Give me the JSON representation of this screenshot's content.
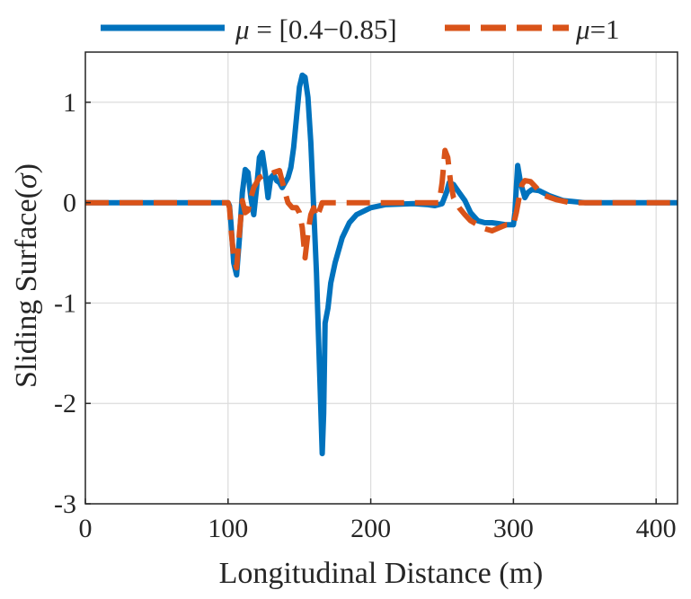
{
  "chart_data": {
    "type": "line",
    "xlabel": "Longitudinal Distance (m)",
    "ylabel_prefix": "Sliding Surface(",
    "ylabel_symbol": "σ",
    "ylabel_suffix": ")",
    "xlim": [
      0,
      415
    ],
    "ylim": [
      -3,
      1.5
    ],
    "xticks": [
      0,
      100,
      200,
      300,
      400
    ],
    "yticks": [
      -3,
      -2,
      -1,
      0,
      1
    ],
    "xtick_labels": [
      "0",
      "100",
      "200",
      "300",
      "400"
    ],
    "ytick_labels": [
      "-3",
      "-2",
      "-1",
      "0",
      "1"
    ],
    "grid": true,
    "legend_position": "top, outside",
    "series": [
      {
        "name": "μ = [0.4−0.85]",
        "legend_symbol": "μ",
        "legend_rest": " = [0.4−0.85]",
        "color": "#0072BD",
        "style": "solid",
        "points": [
          [
            0,
            0
          ],
          [
            100,
            0
          ],
          [
            101,
            -0.03
          ],
          [
            102,
            -0.2
          ],
          [
            104,
            -0.6
          ],
          [
            106,
            -0.72
          ],
          [
            108,
            -0.35
          ],
          [
            110,
            0.1
          ],
          [
            112,
            0.33
          ],
          [
            114,
            0.3
          ],
          [
            116,
            0.05
          ],
          [
            118,
            -0.12
          ],
          [
            120,
            0.15
          ],
          [
            122,
            0.45
          ],
          [
            124,
            0.5
          ],
          [
            126,
            0.3
          ],
          [
            128,
            0.05
          ],
          [
            130,
            0.25
          ],
          [
            132,
            0.28
          ],
          [
            134,
            0.22
          ],
          [
            136,
            0.2
          ],
          [
            138,
            0.15
          ],
          [
            140,
            0.2
          ],
          [
            142,
            0.25
          ],
          [
            144,
            0.35
          ],
          [
            146,
            0.55
          ],
          [
            148,
            0.85
          ],
          [
            150,
            1.15
          ],
          [
            152,
            1.27
          ],
          [
            154,
            1.25
          ],
          [
            156,
            1.05
          ],
          [
            158,
            0.6
          ],
          [
            160,
            -0.05
          ],
          [
            162,
            -0.7
          ],
          [
            164,
            -1.6
          ],
          [
            166,
            -2.5
          ],
          [
            167,
            -2.1
          ],
          [
            168,
            -1.2
          ],
          [
            170,
            -1.05
          ],
          [
            172,
            -0.8
          ],
          [
            175,
            -0.6
          ],
          [
            180,
            -0.35
          ],
          [
            185,
            -0.2
          ],
          [
            190,
            -0.12
          ],
          [
            200,
            -0.05
          ],
          [
            210,
            -0.02
          ],
          [
            230,
            -0.01
          ],
          [
            240,
            -0.02
          ],
          [
            245,
            -0.03
          ],
          [
            250,
            -0.01
          ],
          [
            253,
            0.1
          ],
          [
            255,
            0.2
          ],
          [
            258,
            0.18
          ],
          [
            262,
            0.1
          ],
          [
            266,
            0.02
          ],
          [
            270,
            -0.1
          ],
          [
            275,
            -0.18
          ],
          [
            280,
            -0.2
          ],
          [
            285,
            -0.2
          ],
          [
            290,
            -0.21
          ],
          [
            295,
            -0.22
          ],
          [
            300,
            -0.22
          ],
          [
            301,
            -0.1
          ],
          [
            302,
            0.15
          ],
          [
            303,
            0.37
          ],
          [
            305,
            0.2
          ],
          [
            308,
            0.05
          ],
          [
            310,
            0.1
          ],
          [
            313,
            0.13
          ],
          [
            318,
            0.12
          ],
          [
            325,
            0.07
          ],
          [
            335,
            0.02
          ],
          [
            350,
            0
          ],
          [
            380,
            0
          ],
          [
            415,
            0
          ]
        ]
      },
      {
        "name": "μ=1",
        "legend_symbol": "μ",
        "legend_rest": "=1",
        "color": "#D95319",
        "style": "dashed",
        "points": [
          [
            0,
            0
          ],
          [
            100,
            0
          ],
          [
            101,
            -0.05
          ],
          [
            102,
            -0.25
          ],
          [
            104,
            -0.55
          ],
          [
            106,
            -0.65
          ],
          [
            108,
            -0.3
          ],
          [
            110,
            0.02
          ],
          [
            112,
            -0.1
          ],
          [
            114,
            -0.08
          ],
          [
            116,
            0.05
          ],
          [
            118,
            0.15
          ],
          [
            120,
            0.2
          ],
          [
            122,
            0.25
          ],
          [
            125,
            0.27
          ],
          [
            128,
            0.27
          ],
          [
            132,
            0.3
          ],
          [
            136,
            0.32
          ],
          [
            140,
            0.1
          ],
          [
            142,
            0
          ],
          [
            145,
            -0.05
          ],
          [
            148,
            -0.05
          ],
          [
            150,
            -0.1
          ],
          [
            152,
            -0.25
          ],
          [
            154,
            -0.55
          ],
          [
            156,
            -0.3
          ],
          [
            158,
            -0.12
          ],
          [
            160,
            -0.05
          ],
          [
            162,
            -0.15
          ],
          [
            164,
            -0.08
          ],
          [
            166,
            0
          ],
          [
            180,
            0
          ],
          [
            200,
            0
          ],
          [
            230,
            0
          ],
          [
            248,
            0
          ],
          [
            250,
            0.2
          ],
          [
            252,
            0.52
          ],
          [
            254,
            0.45
          ],
          [
            256,
            0.2
          ],
          [
            258,
            0.05
          ],
          [
            262,
            -0.05
          ],
          [
            266,
            -0.12
          ],
          [
            270,
            -0.18
          ],
          [
            275,
            -0.22
          ],
          [
            280,
            -0.26
          ],
          [
            285,
            -0.28
          ],
          [
            290,
            -0.25
          ],
          [
            295,
            -0.22
          ],
          [
            300,
            -0.22
          ],
          [
            302,
            -0.1
          ],
          [
            304,
            0.05
          ],
          [
            306,
            0.18
          ],
          [
            308,
            0.22
          ],
          [
            312,
            0.21
          ],
          [
            316,
            0.15
          ],
          [
            320,
            0.08
          ],
          [
            330,
            0.03
          ],
          [
            340,
            0
          ],
          [
            380,
            0
          ],
          [
            415,
            0
          ]
        ]
      }
    ]
  }
}
